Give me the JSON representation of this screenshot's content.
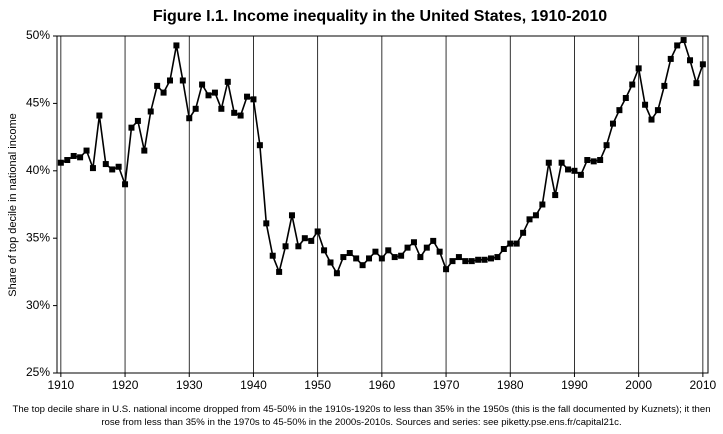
{
  "chart_data": {
    "type": "line",
    "title": "Figure I.1. Income inequality in the United States, 1910-2010",
    "ylabel": "Share of top decile in national income",
    "note": "The top decile share in U.S. national income dropped from 45-50% in the 1910s-1920s to less than 35% in the 1950s (this is the fall documented by Kuznets); it then rose from less than 35% in the 1970s to 45-50% in the 2000s-2010s. Sources and series: see piketty.pse.ens.fr/capital21c.",
    "x": [
      1910,
      1911,
      1912,
      1913,
      1914,
      1915,
      1916,
      1917,
      1918,
      1919,
      1920,
      1921,
      1922,
      1923,
      1924,
      1925,
      1926,
      1927,
      1928,
      1929,
      1930,
      1931,
      1932,
      1933,
      1934,
      1935,
      1936,
      1937,
      1938,
      1939,
      1940,
      1941,
      1942,
      1943,
      1944,
      1945,
      1946,
      1947,
      1948,
      1949,
      1950,
      1951,
      1952,
      1953,
      1954,
      1955,
      1956,
      1957,
      1958,
      1959,
      1960,
      1961,
      1962,
      1963,
      1964,
      1965,
      1966,
      1967,
      1968,
      1969,
      1970,
      1971,
      1972,
      1973,
      1974,
      1975,
      1976,
      1977,
      1978,
      1979,
      1980,
      1981,
      1982,
      1983,
      1984,
      1985,
      1986,
      1987,
      1988,
      1989,
      1990,
      1991,
      1992,
      1993,
      1994,
      1995,
      1996,
      1997,
      1998,
      1999,
      2000,
      2001,
      2002,
      2003,
      2004,
      2005,
      2006,
      2007,
      2008,
      2009,
      2010
    ],
    "values": [
      40.6,
      40.8,
      41.1,
      41.0,
      41.5,
      40.2,
      44.1,
      40.5,
      40.1,
      40.3,
      39.0,
      43.2,
      43.7,
      41.5,
      44.4,
      46.3,
      45.8,
      46.7,
      49.3,
      46.7,
      43.9,
      44.6,
      46.4,
      45.6,
      45.8,
      44.6,
      46.6,
      44.3,
      44.1,
      45.5,
      45.3,
      41.9,
      36.1,
      33.7,
      32.5,
      34.4,
      36.7,
      34.4,
      35.0,
      34.8,
      35.5,
      34.1,
      33.2,
      32.4,
      33.6,
      33.9,
      33.5,
      33.0,
      33.5,
      34.0,
      33.5,
      34.1,
      33.6,
      33.7,
      34.3,
      34.7,
      33.6,
      34.3,
      34.8,
      34.0,
      32.7,
      33.3,
      33.6,
      33.3,
      33.3,
      33.4,
      33.4,
      33.5,
      33.6,
      34.2,
      34.6,
      34.6,
      35.4,
      36.4,
      36.7,
      37.5,
      40.6,
      38.2,
      40.6,
      40.1,
      40.0,
      39.7,
      40.8,
      40.7,
      40.8,
      41.9,
      43.5,
      44.5,
      45.4,
      46.4,
      47.6,
      44.9,
      43.8,
      44.5,
      46.3,
      48.3,
      49.3,
      49.7,
      48.2,
      46.5,
      47.9
    ],
    "color": "#000000",
    "xlim": [
      1909.4,
      2010.8
    ],
    "xticks": [
      1910,
      1920,
      1930,
      1940,
      1950,
      1960,
      1970,
      1980,
      1990,
      2000,
      2010
    ],
    "ylim": [
      25,
      50
    ],
    "yticks": [
      {
        "value": 25,
        "label": "25%"
      },
      {
        "value": 30,
        "label": "30%"
      },
      {
        "value": 35,
        "label": "35%"
      },
      {
        "value": 40,
        "label": "40%"
      },
      {
        "value": 45,
        "label": "45%"
      },
      {
        "value": 50,
        "label": "50%"
      }
    ],
    "xgrid": true
  }
}
